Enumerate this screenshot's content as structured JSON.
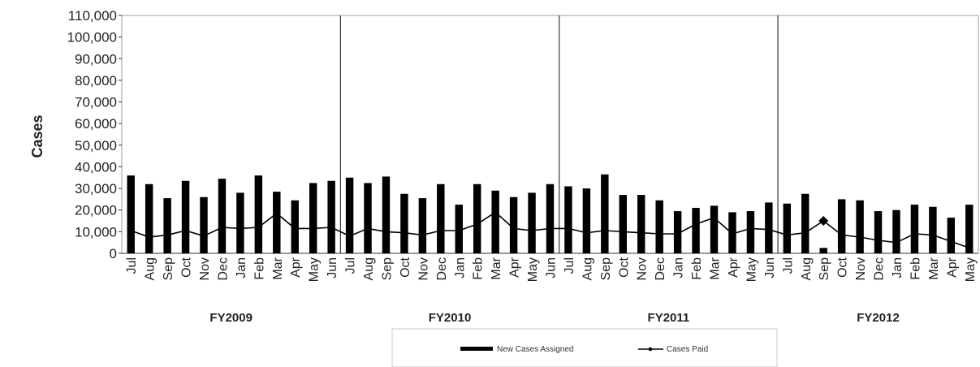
{
  "chart_data": {
    "type": "bar",
    "title": "",
    "ylabel": "Cases",
    "xlabel": "",
    "ylim": [
      0,
      110000
    ],
    "yticks": [
      "0",
      "10,000",
      "20,000",
      "30,000",
      "40,000",
      "50,000",
      "60,000",
      "70,000",
      "80,000",
      "90,000",
      "100,000",
      "110,000"
    ],
    "categories": [
      "Jul",
      "Aug",
      "Sep",
      "Oct",
      "Nov",
      "Dec",
      "Jan",
      "Feb",
      "Mar",
      "Apr",
      "May",
      "Jun",
      "Jul",
      "Aug",
      "Sep",
      "Oct",
      "Nov",
      "Dec",
      "Jan",
      "Feb",
      "Mar",
      "Apr",
      "May",
      "Jun",
      "Jul",
      "Aug",
      "Sep",
      "Oct",
      "Nov",
      "Dec",
      "Jan",
      "Feb",
      "Mar",
      "Apr",
      "May",
      "Jun",
      "Jul",
      "Aug",
      "Sep",
      "Oct",
      "Nov",
      "Dec",
      "Jan",
      "Feb",
      "Mar",
      "Apr",
      "May"
    ],
    "groups": [
      {
        "label": "FY2009",
        "start": 0,
        "count": 12
      },
      {
        "label": "FY2010",
        "start": 12,
        "count": 12
      },
      {
        "label": "FY2011",
        "start": 24,
        "count": 12
      },
      {
        "label": "FY2012",
        "start": 36,
        "count": 11
      }
    ],
    "series": [
      {
        "name": "New Cases Assigned",
        "kind": "bar",
        "color": "#000000",
        "values": [
          36000,
          32000,
          25500,
          33500,
          26000,
          34500,
          28000,
          36000,
          28500,
          24500,
          32500,
          33500,
          35000,
          32500,
          35500,
          27500,
          25500,
          32000,
          22500,
          32000,
          29000,
          26000,
          28000,
          32000,
          31000,
          30000,
          36500,
          27000,
          27000,
          24500,
          19500,
          21000,
          22000,
          19000,
          19500,
          23500,
          23000,
          27500,
          2500,
          25000,
          24500,
          19500,
          20000,
          22500,
          21500,
          16500,
          22500
        ]
      },
      {
        "name": "Cases Paid",
        "kind": "line",
        "color": "#000000",
        "values": [
          10500,
          7500,
          8500,
          10500,
          8000,
          12000,
          11500,
          12000,
          18500,
          11500,
          11500,
          12000,
          8000,
          11500,
          10000,
          9500,
          8500,
          10500,
          10500,
          13500,
          19000,
          11500,
          10500,
          11500,
          11500,
          9500,
          10500,
          10000,
          9500,
          9000,
          9000,
          13500,
          16500,
          9000,
          11500,
          11000,
          8500,
          9500,
          15000,
          8500,
          7500,
          6000,
          5000,
          9000,
          8500,
          5500,
          2500
        ]
      }
    ],
    "legend": {
      "position": "bottom-center"
    }
  }
}
